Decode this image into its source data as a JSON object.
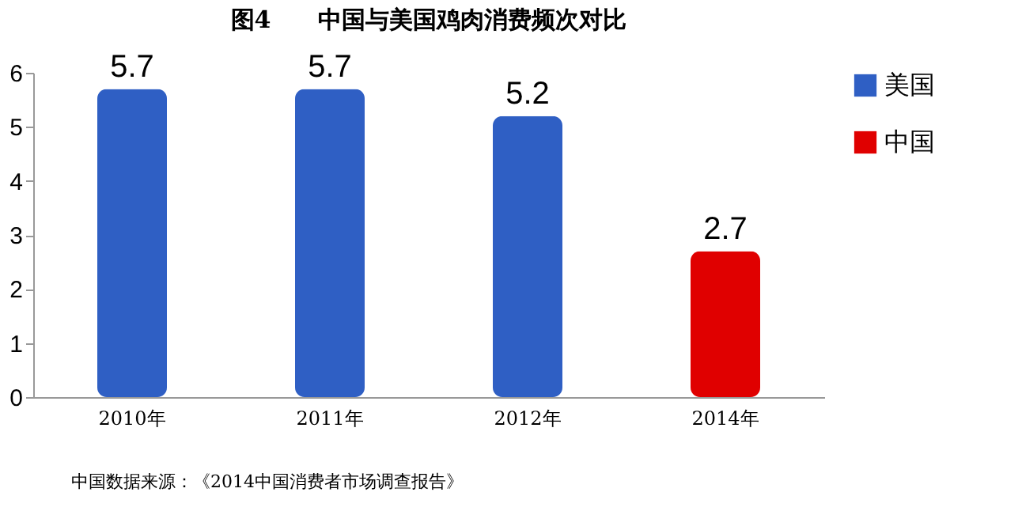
{
  "chart_data": {
    "type": "bar",
    "title": "图4　　中国与美国鸡肉消费频次对比",
    "categories": [
      "2010年",
      "2011年",
      "2012年",
      "2014年"
    ],
    "series": [
      {
        "name": "美国",
        "color": "#2f5fc4",
        "values": [
          5.7,
          5.7,
          5.2,
          null
        ]
      },
      {
        "name": "中国",
        "color": "#e00000",
        "values": [
          null,
          null,
          null,
          2.7
        ]
      }
    ],
    "stacked": true,
    "ylim": [
      0,
      6
    ],
    "yticks": [
      0,
      1,
      2,
      3,
      4,
      5,
      6
    ],
    "grid": false,
    "legend": "right",
    "data_labels": true,
    "annotations": [
      "中国数据来源：《2014中国消费者市场调查报告》"
    ]
  }
}
